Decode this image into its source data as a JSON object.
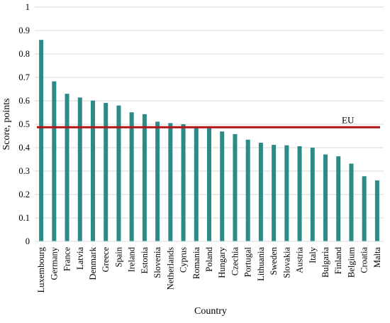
{
  "chart_data": {
    "type": "bar",
    "xlabel": "Country",
    "ylabel": "Score,  points",
    "ylim": [
      0,
      1
    ],
    "yticks": [
      "0",
      "0.1",
      "0.2",
      "0.3",
      "0.4",
      "0.5",
      "0.6",
      "0.7",
      "0.8",
      "0.9",
      "1"
    ],
    "grid": true,
    "bar_color": "#2a8b87",
    "categories": [
      "Luxembourg",
      "Germany",
      "France",
      "Latvia",
      "Denmark",
      "Greece",
      "Spain",
      "Ireland",
      "Estonia",
      "Slovenia",
      "Netherlands",
      "Cyprus",
      "Romania",
      "Poland",
      "Hungary",
      "Czechia",
      "Portugal",
      "Lithuania",
      "Sweden",
      "Slovakia",
      "Austria",
      "Italy",
      "Bulgaria",
      "Finland",
      "Belgium",
      "Croatia",
      "Malta"
    ],
    "values": [
      0.86,
      0.683,
      0.63,
      0.614,
      0.601,
      0.591,
      0.58,
      0.551,
      0.543,
      0.511,
      0.505,
      0.5,
      0.488,
      0.483,
      0.469,
      0.458,
      0.434,
      0.421,
      0.412,
      0.41,
      0.406,
      0.4,
      0.371,
      0.363,
      0.332,
      0.278,
      0.26
    ],
    "reference_line": {
      "label": "EU",
      "value": 0.487,
      "color": "#b01616"
    }
  }
}
